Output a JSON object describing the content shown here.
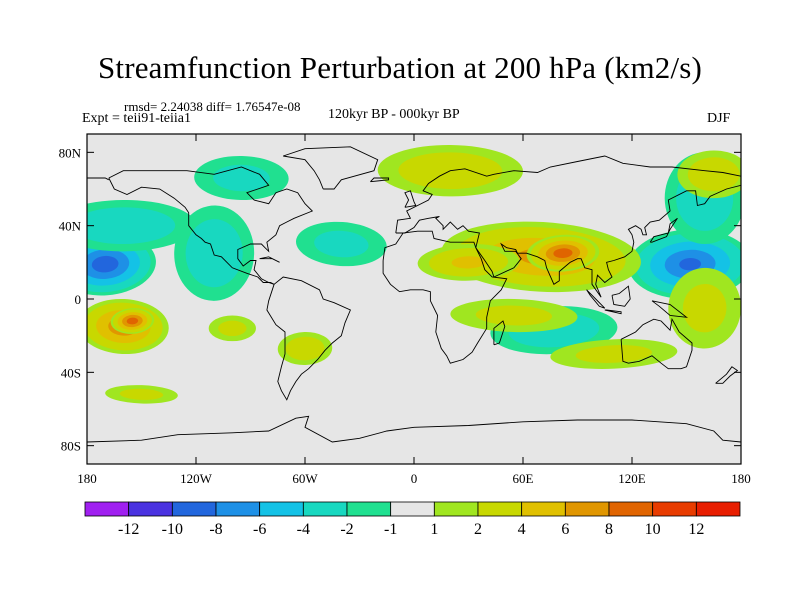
{
  "title": "Streamfunction Perturbation at 200 hPa (km2/s)",
  "stats": "rmsd= 2.24038 diff= 1.76547e-08",
  "expt": "Expt = teii91-teiia1",
  "period": "120kyr BP - 000kyr BP",
  "season": "DJF",
  "map": {
    "lat_range": [
      -90,
      90
    ],
    "lon_range": [
      -180,
      180
    ],
    "x_ticks": [
      {
        "lon": -180,
        "label": "180"
      },
      {
        "lon": -120,
        "label": "120W"
      },
      {
        "lon": -60,
        "label": "60W"
      },
      {
        "lon": 0,
        "label": "0"
      },
      {
        "lon": 60,
        "label": "60E"
      },
      {
        "lon": 120,
        "label": "120E"
      },
      {
        "lon": 180,
        "label": "180"
      }
    ],
    "y_ticks": [
      {
        "lat": 80,
        "label": "80N"
      },
      {
        "lat": 40,
        "label": "40N"
      },
      {
        "lat": 0,
        "label": "0"
      },
      {
        "lat": -40,
        "label": "40S"
      },
      {
        "lat": -80,
        "label": "80S"
      }
    ],
    "anomalies": [
      {
        "lon": -170,
        "lat": 19,
        "rlon": 28,
        "rlat": 17,
        "value": -9
      },
      {
        "lon": 152,
        "lat": 19,
        "rlon": 34,
        "rlat": 19,
        "value": -8
      },
      {
        "lon": -160,
        "lat": 40,
        "rlon": 40,
        "rlat": 14,
        "value": -3
      },
      {
        "lon": -110,
        "lat": 25,
        "rlon": 22,
        "rlat": 26,
        "value": -3
      },
      {
        "lon": -40,
        "lat": 30,
        "rlon": 25,
        "rlat": 12,
        "value": -2
      },
      {
        "lon": 77,
        "lat": -17,
        "rlon": 35,
        "rlat": 13,
        "value": -3
      },
      {
        "lon": 160,
        "lat": 55,
        "rlon": 22,
        "rlat": 25,
        "value": -3
      },
      {
        "lon": -95,
        "lat": 66,
        "rlon": 26,
        "rlat": 12,
        "value": -2
      },
      {
        "lon": 70,
        "lat": 23,
        "rlon": 55,
        "rlat": 19,
        "value": 6
      },
      {
        "lon": 82,
        "lat": 25,
        "rlon": 20,
        "rlat": 10,
        "value": 9
      },
      {
        "lon": 30,
        "lat": 20,
        "rlon": 28,
        "rlat": 10,
        "value": 4
      },
      {
        "lon": 20,
        "lat": 70,
        "rlon": 40,
        "rlat": 14,
        "value": 3
      },
      {
        "lon": -160,
        "lat": -15,
        "rlon": 25,
        "rlat": 15,
        "value": 7
      },
      {
        "lon": -155,
        "lat": -12,
        "rlon": 12,
        "rlat": 7,
        "value": 9
      },
      {
        "lon": -60,
        "lat": -27,
        "rlon": 15,
        "rlat": 9,
        "value": 3
      },
      {
        "lon": -100,
        "lat": -16,
        "rlon": 13,
        "rlat": 7,
        "value": 2
      },
      {
        "lon": -150,
        "lat": -52,
        "rlon": 20,
        "rlat": 5,
        "value": 2
      },
      {
        "lon": 160,
        "lat": -5,
        "rlon": 20,
        "rlat": 22,
        "value": 2
      },
      {
        "lon": 110,
        "lat": -30,
        "rlon": 35,
        "rlat": 8,
        "value": 2
      },
      {
        "lon": 165,
        "lat": 68,
        "rlon": 20,
        "rlat": 13,
        "value": 3
      },
      {
        "lon": 55,
        "lat": -9,
        "rlon": 35,
        "rlat": 9,
        "value": 2
      }
    ]
  },
  "colorbar": {
    "colors": [
      "#a020f0",
      "#4a32e0",
      "#2266dd",
      "#1e90e6",
      "#14c2e6",
      "#18d8c0",
      "#20e090",
      "#e6e6e6",
      "#a0e620",
      "#c8d800",
      "#e0c000",
      "#e09600",
      "#e06400",
      "#e83c00",
      "#e81e00"
    ],
    "labels": [
      "-12",
      "-10",
      "-8",
      "-6",
      "-4",
      "-2",
      "-1",
      "1",
      "2",
      "4",
      "6",
      "8",
      "10",
      "12"
    ]
  }
}
